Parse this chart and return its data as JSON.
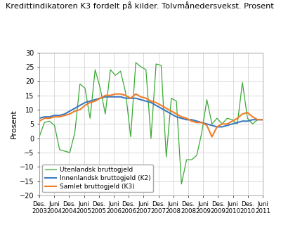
{
  "title": "Kredittindikatoren K3 fordelt på kilder. Tolvmånedersvekst. Prosent",
  "ylabel": "Prosent",
  "ylim": [
    -20,
    30
  ],
  "yticks": [
    -20,
    -15,
    -10,
    -5,
    0,
    5,
    10,
    15,
    20,
    25,
    30
  ],
  "line_colors": {
    "utenlandsk": "#3aaa35",
    "innenlandsk": "#3c7abf",
    "samlet": "#f07d28"
  },
  "legend_labels": [
    "Utenlandsk bruttogjeld",
    "Innenlandsk bruttogjeld (K2)",
    "Samlet bruttogjeld (K3)"
  ],
  "background_color": "#ffffff",
  "grid_color": "#cccccc",
  "tick_labels": [
    [
      "Des.\n2003",
      "Juni\n2004",
      "Des.\n2004",
      "Juni\n2005",
      "Des.\n2005",
      "Juni\n2006",
      "Des.\n2006",
      "Juni\n2007",
      "Des.\n2007",
      "Juni\n2008",
      "Des.\n2008",
      "Juni\n2009",
      "Des.\n2009",
      "Juni\n2010",
      "Des.\n2010",
      "Juni\n2011"
    ],
    [
      0,
      1,
      2,
      3,
      4,
      5,
      6,
      7,
      8,
      9,
      10,
      11,
      12,
      13,
      14,
      15
    ]
  ],
  "utenlandsk": [
    0.5,
    5.5,
    6.0,
    4.5,
    -4.0,
    -4.5,
    -5.0,
    2.0,
    19.0,
    17.5,
    7.0,
    24.0,
    17.5,
    8.5,
    24.0,
    22.0,
    23.5,
    16.0,
    0.5,
    26.5,
    25.0,
    24.0,
    0.0,
    26.0,
    25.5,
    -6.5,
    14.0,
    13.0,
    -16.0,
    -7.5,
    -7.5,
    -6.0,
    2.0,
    13.5,
    5.0,
    7.0,
    5.0,
    7.0,
    6.5,
    5.0,
    19.5,
    7.0,
    5.0,
    6.5,
    6.5
  ],
  "innenlandsk": [
    7.0,
    7.5,
    7.5,
    8.0,
    8.0,
    8.5,
    9.5,
    10.5,
    11.5,
    12.5,
    13.0,
    13.5,
    14.0,
    14.5,
    14.5,
    14.5,
    14.5,
    14.0,
    14.0,
    14.0,
    13.5,
    13.0,
    12.5,
    11.5,
    10.5,
    9.5,
    8.5,
    7.5,
    7.0,
    6.5,
    6.5,
    6.0,
    5.5,
    5.0,
    4.5,
    4.0,
    4.0,
    4.5,
    5.0,
    5.5,
    6.0,
    6.0,
    6.5,
    6.5,
    6.5
  ],
  "samlet": [
    6.0,
    7.0,
    7.0,
    7.5,
    7.5,
    8.0,
    8.5,
    9.5,
    10.0,
    11.5,
    12.5,
    13.0,
    14.0,
    15.0,
    15.0,
    15.5,
    15.5,
    15.0,
    14.0,
    15.5,
    14.5,
    14.0,
    13.0,
    12.5,
    11.5,
    10.5,
    9.5,
    8.5,
    7.5,
    7.0,
    6.0,
    5.5,
    5.5,
    4.5,
    0.5,
    4.0,
    5.0,
    5.0,
    6.0,
    7.0,
    8.5,
    9.0,
    7.5,
    6.5,
    6.5
  ]
}
